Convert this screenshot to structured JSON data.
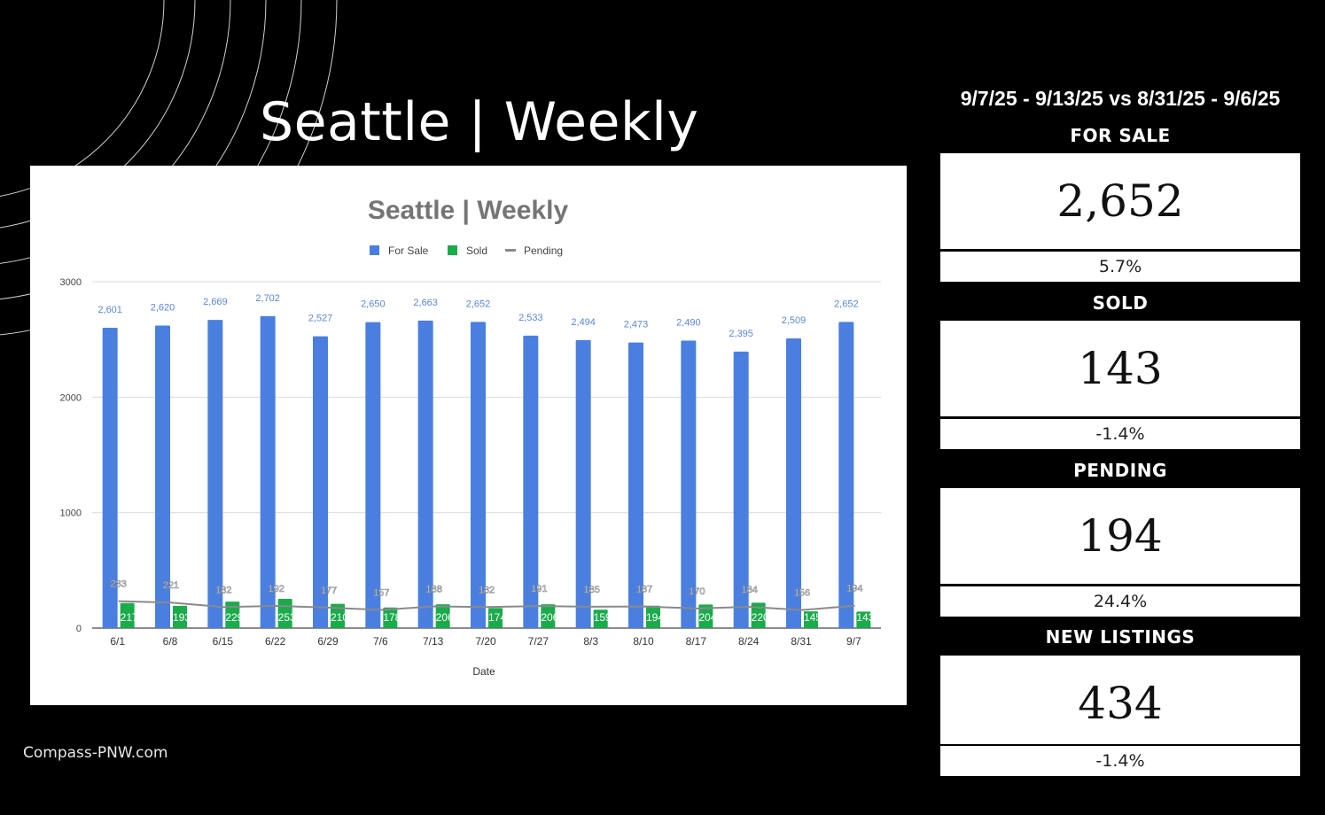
{
  "page_title": "Seattle | Weekly",
  "footer": "Compass-PNW.com",
  "range_label": "9/7/25 - 9/13/25 vs 8/31/25 - 9/6/25",
  "stats": [
    {
      "label": "FOR SALE",
      "value": "2,652",
      "change": "5.7%"
    },
    {
      "label": "SOLD",
      "value": "143",
      "change": "-1.4%"
    },
    {
      "label": "PENDING",
      "value": "194",
      "change": "24.4%"
    },
    {
      "label": "NEW LISTINGS",
      "value": "434",
      "change": "-1.4%"
    }
  ],
  "colors": {
    "for_sale": "#4a7fe0",
    "sold": "#1aab4a",
    "pending": "#8a8a8a",
    "title_gray": "#757575"
  },
  "chart_data": {
    "type": "bar",
    "title": "Seattle | Weekly",
    "xlabel": "Date",
    "ylabel": "",
    "ylim": [
      0,
      3000
    ],
    "yticks": [
      0,
      1000,
      2000,
      3000
    ],
    "grid": true,
    "legend_position": "top",
    "categories": [
      "6/1",
      "6/8",
      "6/15",
      "6/22",
      "6/29",
      "7/6",
      "7/13",
      "7/20",
      "7/27",
      "8/3",
      "8/10",
      "8/17",
      "8/24",
      "8/31",
      "9/7"
    ],
    "series": [
      {
        "name": "For Sale",
        "type": "bar",
        "color": "#4a7fe0",
        "values": [
          2601,
          2620,
          2669,
          2702,
          2527,
          2650,
          2663,
          2652,
          2533,
          2494,
          2473,
          2490,
          2395,
          2509,
          2652
        ],
        "labels": [
          "2,601",
          "2,620",
          "2,669",
          "2,702",
          "2,527",
          "2,650",
          "2,663",
          "2,652",
          "2,533",
          "2,494",
          "2,473",
          "2,490",
          "2,395",
          "2,509",
          "2,652"
        ]
      },
      {
        "name": "Sold",
        "type": "bar",
        "color": "#1aab4a",
        "values": [
          217,
          193,
          229,
          253,
          210,
          178,
          206,
          174,
          206,
          159,
          194,
          204,
          220,
          145,
          143
        ],
        "labels": [
          "217",
          "193",
          "229",
          "253",
          "210",
          "178",
          "206",
          "174",
          "206",
          "159",
          "194",
          "204",
          "220",
          "145",
          "143"
        ]
      },
      {
        "name": "Pending",
        "type": "line",
        "color": "#8a8a8a",
        "values": [
          233,
          221,
          182,
          192,
          177,
          157,
          188,
          182,
          191,
          185,
          187,
          170,
          184,
          156,
          194
        ],
        "labels": [
          "233",
          "221",
          "182",
          "192",
          "177",
          "157",
          "188",
          "182",
          "191",
          "185",
          "187",
          "170",
          "184",
          "156",
          "194"
        ]
      }
    ]
  }
}
